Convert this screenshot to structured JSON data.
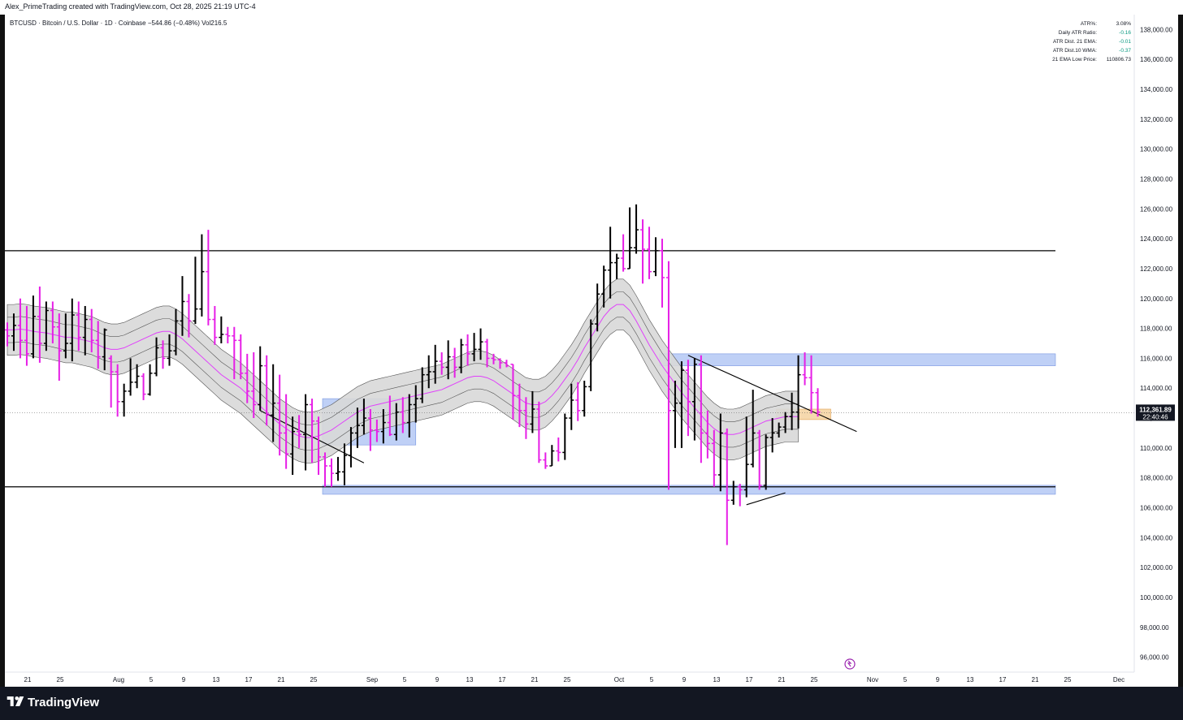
{
  "header": {
    "credit": "Alex_PrimeTrading created with TradingView.com, Oct 28, 2025 21:19 UTC-4"
  },
  "symbol": {
    "name": "BTCUSD · Bitcoin / U.S. Dollar · 1D · Coinbase",
    "change": "−544.86 (−0.48%)",
    "volume": "Vol216.5"
  },
  "indicator_table": [
    {
      "label": "ATR%:",
      "value": "3.08%",
      "color": "#131722"
    },
    {
      "label": "Daily ATR Ratio:",
      "value": "-0.16",
      "color": "#089981"
    },
    {
      "label": "ATR Dist. 21 EMA:",
      "value": "-0.01",
      "color": "#089981"
    },
    {
      "label": "ATR Dist.10 WMA:",
      "value": "-0.37",
      "color": "#089981"
    },
    {
      "label": "21 EMA Low Price:",
      "value": "110806.73",
      "color": "#131722"
    }
  ],
  "price_label": {
    "price": "112,361.89",
    "countdown": "22:40:46"
  },
  "footer": {
    "brand": "TradingView"
  },
  "colors": {
    "up_bar": "#000000",
    "down_bar": "#e61ee6",
    "ema": "#e040fb",
    "band_fill": "#d8d8d8",
    "zone_blue": "#b4c8f5",
    "zone_orange": "#f5d2a0",
    "line": "#000000"
  },
  "chart_data": {
    "type": "ohlc-bar",
    "yaxis": {
      "ylim": [
        95000,
        139000
      ],
      "ticks": [
        "96,000.00",
        "98,000.00",
        "100,000.00",
        "102,000.00",
        "104,000.00",
        "106,000.00",
        "108,000.00",
        "110,000.00",
        "112,000.00",
        "114,000.00",
        "116,000.00",
        "118,000.00",
        "120,000.00",
        "122,000.00",
        "124,000.00",
        "126,000.00",
        "128,000.00",
        "130,000.00",
        "132,000.00",
        "134,000.00",
        "136,000.00",
        "138,000.00"
      ]
    },
    "xaxis": {
      "ticks": [
        "21",
        "25",
        "Aug",
        "5",
        "9",
        "13",
        "17",
        "21",
        "25",
        "Sep",
        "5",
        "9",
        "13",
        "17",
        "21",
        "25",
        "Oct",
        "5",
        "9",
        "13",
        "17",
        "21",
        "25",
        "Nov",
        "5",
        "9",
        "13",
        "17",
        "21",
        "25",
        "Dec"
      ]
    },
    "bars": [
      {
        "o": 117900,
        "h": 118400,
        "l": 116800,
        "c": 117500
      },
      {
        "o": 117500,
        "h": 119000,
        "l": 116500,
        "c": 118200
      },
      {
        "o": 118200,
        "h": 120000,
        "l": 116000,
        "c": 117200
      },
      {
        "o": 117200,
        "h": 119500,
        "l": 115500,
        "c": 116300
      },
      {
        "o": 116300,
        "h": 120200,
        "l": 116000,
        "c": 118800
      },
      {
        "o": 118800,
        "h": 120800,
        "l": 115700,
        "c": 117000
      },
      {
        "o": 117000,
        "h": 119800,
        "l": 116500,
        "c": 119200
      },
      {
        "o": 119200,
        "h": 119800,
        "l": 117000,
        "c": 118100
      },
      {
        "o": 118100,
        "h": 119000,
        "l": 114500,
        "c": 116500
      },
      {
        "o": 116500,
        "h": 119000,
        "l": 116000,
        "c": 117000
      },
      {
        "o": 117000,
        "h": 120000,
        "l": 115800,
        "c": 118900
      },
      {
        "o": 118900,
        "h": 119800,
        "l": 116500,
        "c": 117400
      },
      {
        "o": 117400,
        "h": 119500,
        "l": 116200,
        "c": 118600
      },
      {
        "o": 118600,
        "h": 119300,
        "l": 116400,
        "c": 117200
      },
      {
        "o": 117200,
        "h": 118500,
        "l": 115300,
        "c": 116100
      },
      {
        "o": 116100,
        "h": 118000,
        "l": 115200,
        "c": 117900
      },
      {
        "o": 116000,
        "h": 116200,
        "l": 112700,
        "c": 115100
      },
      {
        "o": 115100,
        "h": 115600,
        "l": 112100,
        "c": 113100
      },
      {
        "o": 113100,
        "h": 114300,
        "l": 112100,
        "c": 113800
      },
      {
        "o": 113800,
        "h": 116000,
        "l": 113500,
        "c": 114400
      },
      {
        "o": 114400,
        "h": 115600,
        "l": 114000,
        "c": 114800
      },
      {
        "o": 114800,
        "h": 115000,
        "l": 113200,
        "c": 113600
      },
      {
        "o": 113600,
        "h": 115600,
        "l": 113500,
        "c": 115000
      },
      {
        "o": 115000,
        "h": 117400,
        "l": 114800,
        "c": 116700
      },
      {
        "o": 116700,
        "h": 117200,
        "l": 115300,
        "c": 116000
      },
      {
        "o": 116000,
        "h": 117600,
        "l": 115500,
        "c": 116500
      },
      {
        "o": 116500,
        "h": 119300,
        "l": 116200,
        "c": 118500
      },
      {
        "o": 118500,
        "h": 121500,
        "l": 117500,
        "c": 119800
      },
      {
        "o": 119800,
        "h": 120300,
        "l": 117400,
        "c": 118500
      },
      {
        "o": 118500,
        "h": 122800,
        "l": 118300,
        "c": 119300
      },
      {
        "o": 119300,
        "h": 124300,
        "l": 118800,
        "c": 121800
      },
      {
        "o": 121800,
        "h": 124600,
        "l": 118200,
        "c": 118600
      },
      {
        "o": 118600,
        "h": 119500,
        "l": 116900,
        "c": 117400
      },
      {
        "o": 117400,
        "h": 118800,
        "l": 117000,
        "c": 117600
      },
      {
        "o": 117600,
        "h": 118100,
        "l": 117000,
        "c": 117500
      },
      {
        "o": 117500,
        "h": 118100,
        "l": 114600,
        "c": 117200
      },
      {
        "o": 117200,
        "h": 117600,
        "l": 114600,
        "c": 115000
      },
      {
        "o": 115000,
        "h": 116300,
        "l": 113000,
        "c": 113800
      },
      {
        "o": 113800,
        "h": 116400,
        "l": 112000,
        "c": 112900
      },
      {
        "o": 112900,
        "h": 116800,
        "l": 112500,
        "c": 115500
      },
      {
        "o": 115500,
        "h": 116200,
        "l": 111500,
        "c": 112200
      },
      {
        "o": 112200,
        "h": 115600,
        "l": 110400,
        "c": 113000
      },
      {
        "o": 113000,
        "h": 114900,
        "l": 109500,
        "c": 111000
      },
      {
        "o": 111000,
        "h": 113600,
        "l": 108600,
        "c": 109600
      },
      {
        "o": 109600,
        "h": 112100,
        "l": 108200,
        "c": 111100
      },
      {
        "o": 111100,
        "h": 112200,
        "l": 110000,
        "c": 110900
      },
      {
        "o": 110900,
        "h": 113600,
        "l": 108500,
        "c": 112900
      },
      {
        "o": 112900,
        "h": 113300,
        "l": 109000,
        "c": 111800
      },
      {
        "o": 111800,
        "h": 112100,
        "l": 108200,
        "c": 109400
      },
      {
        "o": 109400,
        "h": 109700,
        "l": 107400,
        "c": 108800
      },
      {
        "o": 108800,
        "h": 109300,
        "l": 107400,
        "c": 108300
      },
      {
        "o": 108300,
        "h": 109400,
        "l": 107800,
        "c": 108400
      },
      {
        "o": 108400,
        "h": 110300,
        "l": 107500,
        "c": 109500
      },
      {
        "o": 109500,
        "h": 111400,
        "l": 108700,
        "c": 111000
      },
      {
        "o": 111000,
        "h": 112700,
        "l": 110000,
        "c": 111500
      },
      {
        "o": 111500,
        "h": 113300,
        "l": 110900,
        "c": 112000
      },
      {
        "o": 112000,
        "h": 112600,
        "l": 109800,
        "c": 111200
      },
      {
        "o": 111200,
        "h": 111900,
        "l": 110400,
        "c": 111100
      },
      {
        "o": 111100,
        "h": 112600,
        "l": 110300,
        "c": 111700
      },
      {
        "o": 111700,
        "h": 113500,
        "l": 110800,
        "c": 110900
      },
      {
        "o": 110900,
        "h": 113000,
        "l": 110500,
        "c": 112400
      },
      {
        "o": 112400,
        "h": 113400,
        "l": 111000,
        "c": 111700
      },
      {
        "o": 111700,
        "h": 113600,
        "l": 110700,
        "c": 112900
      },
      {
        "o": 112900,
        "h": 114200,
        "l": 111700,
        "c": 113300
      },
      {
        "o": 113300,
        "h": 115400,
        "l": 113000,
        "c": 114900
      },
      {
        "o": 114900,
        "h": 116200,
        "l": 114000,
        "c": 115100
      },
      {
        "o": 115100,
        "h": 116900,
        "l": 114300,
        "c": 115800
      },
      {
        "o": 115800,
        "h": 116400,
        "l": 114900,
        "c": 115400
      },
      {
        "o": 115400,
        "h": 117200,
        "l": 114600,
        "c": 116100
      },
      {
        "o": 116100,
        "h": 116700,
        "l": 114700,
        "c": 115400
      },
      {
        "o": 115400,
        "h": 117300,
        "l": 115000,
        "c": 116900
      },
      {
        "o": 116900,
        "h": 117600,
        "l": 115500,
        "c": 116300
      },
      {
        "o": 116300,
        "h": 117700,
        "l": 115800,
        "c": 116600
      },
      {
        "o": 116600,
        "h": 118000,
        "l": 115900,
        "c": 117100
      },
      {
        "o": 117100,
        "h": 117300,
        "l": 115400,
        "c": 116000
      },
      {
        "o": 116000,
        "h": 116300,
        "l": 115600,
        "c": 115900
      },
      {
        "o": 115900,
        "h": 116000,
        "l": 115300,
        "c": 115700
      },
      {
        "o": 115700,
        "h": 115900,
        "l": 115400,
        "c": 115500
      },
      {
        "o": 115600,
        "h": 115600,
        "l": 111900,
        "c": 113500
      },
      {
        "o": 113500,
        "h": 114300,
        "l": 111400,
        "c": 112500
      },
      {
        "o": 112500,
        "h": 113400,
        "l": 110600,
        "c": 111600
      },
      {
        "o": 111600,
        "h": 113800,
        "l": 111000,
        "c": 112600
      },
      {
        "o": 112600,
        "h": 113100,
        "l": 109000,
        "c": 109200
      },
      {
        "o": 109200,
        "h": 109700,
        "l": 108600,
        "c": 108800
      },
      {
        "o": 108800,
        "h": 110200,
        "l": 108800,
        "c": 109800
      },
      {
        "o": 109800,
        "h": 110700,
        "l": 109100,
        "c": 109700
      },
      {
        "o": 109700,
        "h": 112300,
        "l": 109200,
        "c": 112000
      },
      {
        "o": 112000,
        "h": 114300,
        "l": 111200,
        "c": 113200
      },
      {
        "o": 113200,
        "h": 114400,
        "l": 111800,
        "c": 112500
      },
      {
        "o": 112500,
        "h": 114500,
        "l": 112100,
        "c": 114100
      },
      {
        "o": 114100,
        "h": 118600,
        "l": 113800,
        "c": 118300
      },
      {
        "o": 118300,
        "h": 121000,
        "l": 117800,
        "c": 120300
      },
      {
        "o": 120300,
        "h": 122200,
        "l": 119400,
        "c": 121900
      },
      {
        "o": 121900,
        "h": 124800,
        "l": 120000,
        "c": 122400
      },
      {
        "o": 122400,
        "h": 123000,
        "l": 121300,
        "c": 122700
      },
      {
        "o": 122700,
        "h": 124300,
        "l": 121800,
        "c": 122000
      },
      {
        "o": 122000,
        "h": 126100,
        "l": 122000,
        "c": 123400
      },
      {
        "o": 123400,
        "h": 126300,
        "l": 123000,
        "c": 124600
      },
      {
        "o": 124600,
        "h": 125300,
        "l": 121000,
        "c": 123300
      },
      {
        "o": 123300,
        "h": 124800,
        "l": 121300,
        "c": 121800
      },
      {
        "o": 121800,
        "h": 124100,
        "l": 121500,
        "c": 123200
      },
      {
        "o": 123200,
        "h": 124000,
        "l": 119400,
        "c": 121400
      },
      {
        "o": 121400,
        "h": 122500,
        "l": 107200,
        "c": 112500
      },
      {
        "o": 112500,
        "h": 114500,
        "l": 110000,
        "c": 113000
      },
      {
        "o": 113000,
        "h": 115800,
        "l": 110000,
        "c": 115200
      },
      {
        "o": 115200,
        "h": 115900,
        "l": 110800,
        "c": 113100
      },
      {
        "o": 113100,
        "h": 116000,
        "l": 110500,
        "c": 115600
      },
      {
        "o": 115600,
        "h": 116200,
        "l": 109000,
        "c": 111000
      },
      {
        "o": 111000,
        "h": 112500,
        "l": 109300,
        "c": 110300
      },
      {
        "o": 110300,
        "h": 111200,
        "l": 107400,
        "c": 108200
      },
      {
        "o": 108200,
        "h": 112300,
        "l": 107100,
        "c": 111000
      },
      {
        "o": 111000,
        "h": 111300,
        "l": 103500,
        "c": 106500
      },
      {
        "o": 106500,
        "h": 107800,
        "l": 106200,
        "c": 107400
      },
      {
        "o": 107400,
        "h": 107600,
        "l": 106100,
        "c": 107200
      },
      {
        "o": 107200,
        "h": 112100,
        "l": 106700,
        "c": 108900
      },
      {
        "o": 108900,
        "h": 113900,
        "l": 108700,
        "c": 111000
      },
      {
        "o": 111000,
        "h": 111200,
        "l": 107200,
        "c": 107500
      },
      {
        "o": 107500,
        "h": 110900,
        "l": 107200,
        "c": 110700
      },
      {
        "o": 110700,
        "h": 112000,
        "l": 109700,
        "c": 111000
      },
      {
        "o": 111000,
        "h": 111700,
        "l": 110700,
        "c": 111400
      },
      {
        "o": 111400,
        "h": 112400,
        "l": 111000,
        "c": 112100
      },
      {
        "o": 112100,
        "h": 113700,
        "l": 111200,
        "c": 112400
      },
      {
        "o": 112400,
        "h": 116200,
        "l": 111300,
        "c": 114900
      },
      {
        "o": 114900,
        "h": 116400,
        "l": 114200,
        "c": 114700
      },
      {
        "o": 114700,
        "h": 116200,
        "l": 112300,
        "c": 113700
      },
      {
        "o": 113700,
        "h": 114000,
        "l": 112100,
        "c": 112400
      }
    ],
    "ema_21": [
      117900,
      117900,
      117950,
      117900,
      117800,
      117750,
      117700,
      117600,
      117500,
      117400,
      117400,
      117300,
      117200,
      117100,
      116900,
      116700,
      116600,
      116600,
      116700,
      116900,
      117100,
      117300,
      117500,
      117700,
      117800,
      117800,
      117600,
      117300,
      116900,
      116500,
      116100,
      115700,
      115300,
      114900,
      114600,
      114300,
      114000,
      113600,
      113200,
      112800,
      112400,
      112000,
      111600,
      111300,
      111000,
      110800,
      110700,
      110700,
      110800,
      111000,
      111200,
      111500,
      111800,
      112100,
      112400,
      112600,
      112800,
      112900,
      113000,
      113100,
      113200,
      113300,
      113400,
      113500,
      113600,
      113700,
      113800,
      113900,
      114100,
      114300,
      114500,
      114700,
      114800,
      114800,
      114700,
      114500,
      114200,
      113900,
      113600,
      113300,
      113000,
      112900,
      112900,
      113100,
      113500,
      114000,
      114600,
      115200,
      115900,
      116700,
      117400,
      118100,
      118800,
      119300,
      119600,
      119600,
      119200,
      118500,
      117700,
      116900,
      116200,
      115500,
      114900,
      114300,
      113700,
      113200,
      112700,
      112200,
      111700,
      111300,
      111000,
      110900,
      110900,
      111000,
      111200,
      111400,
      111600,
      111800,
      111900,
      112000,
      112100,
      112100,
      112100
    ],
    "band_half_width": 1700,
    "annotations": {
      "horizontal_lines": [
        123200,
        107400
      ],
      "last_price": 112361.89,
      "zones": [
        {
          "from_bar": 49,
          "to_bar": 63,
          "low": 110200,
          "high": 113300,
          "color": "zone_blue"
        },
        {
          "from_bar": 49,
          "to_bar": 134,
          "low": 106900,
          "high": 107500,
          "color": "zone_blue"
        },
        {
          "from_bar": 101,
          "to_bar": 134,
          "low": 115500,
          "high": 116300,
          "color": "zone_blue"
        },
        {
          "from_bar": 119,
          "to_bar": 127,
          "low": 111900,
          "high": 112600,
          "color": "zone_orange"
        }
      ],
      "trend_lines": [
        {
          "from_bar": 39,
          "from_y": 112500,
          "to_bar": 55,
          "to_y": 109000
        },
        {
          "from_bar": 105,
          "from_y": 116200,
          "to_bar": 131,
          "to_y": 111100
        },
        {
          "from_bar": 114,
          "from_y": 106200,
          "to_bar": 120,
          "to_y": 107000
        }
      ]
    }
  }
}
